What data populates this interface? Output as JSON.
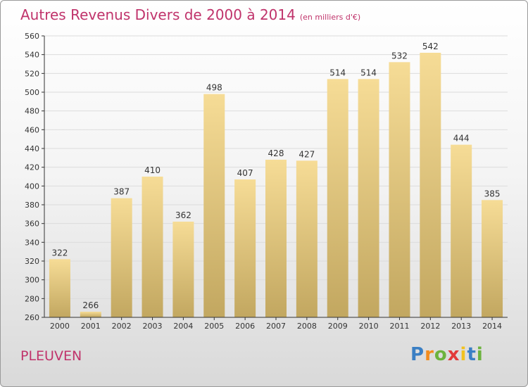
{
  "title": "Autres Revenus Divers de 2000 à 2014",
  "unit": "(en milliers d'€)",
  "place": "PLEUVEN",
  "brand": {
    "letters": [
      "P",
      "r",
      "o",
      "x",
      "i",
      "t",
      "i"
    ],
    "colors": [
      "#3a7fc4",
      "#f28c1e",
      "#6cb33e",
      "#e23a3a",
      "#f2c21e",
      "#3a7fc4",
      "#6cb33e"
    ]
  },
  "colors": {
    "title": "#c0336b",
    "bar_top": "#f6dc96",
    "bar_bottom": "#c2a760",
    "grid": "#dcdcdc",
    "axis": "#333333"
  },
  "chart_data": {
    "type": "bar",
    "title": "Autres Revenus Divers de 2000 à 2014",
    "ylabel": "",
    "xlabel": "",
    "categories": [
      "2000",
      "2001",
      "2002",
      "2003",
      "2004",
      "2005",
      "2006",
      "2007",
      "2008",
      "2009",
      "2010",
      "2011",
      "2012",
      "2013",
      "2014"
    ],
    "values": [
      322,
      266,
      387,
      410,
      362,
      498,
      407,
      428,
      427,
      514,
      514,
      532,
      542,
      444,
      385
    ],
    "ylim": [
      260,
      560
    ],
    "yticks": [
      260,
      280,
      300,
      320,
      340,
      360,
      380,
      400,
      420,
      440,
      460,
      480,
      500,
      520,
      540,
      560
    ],
    "grid": true,
    "data_labels": true
  }
}
